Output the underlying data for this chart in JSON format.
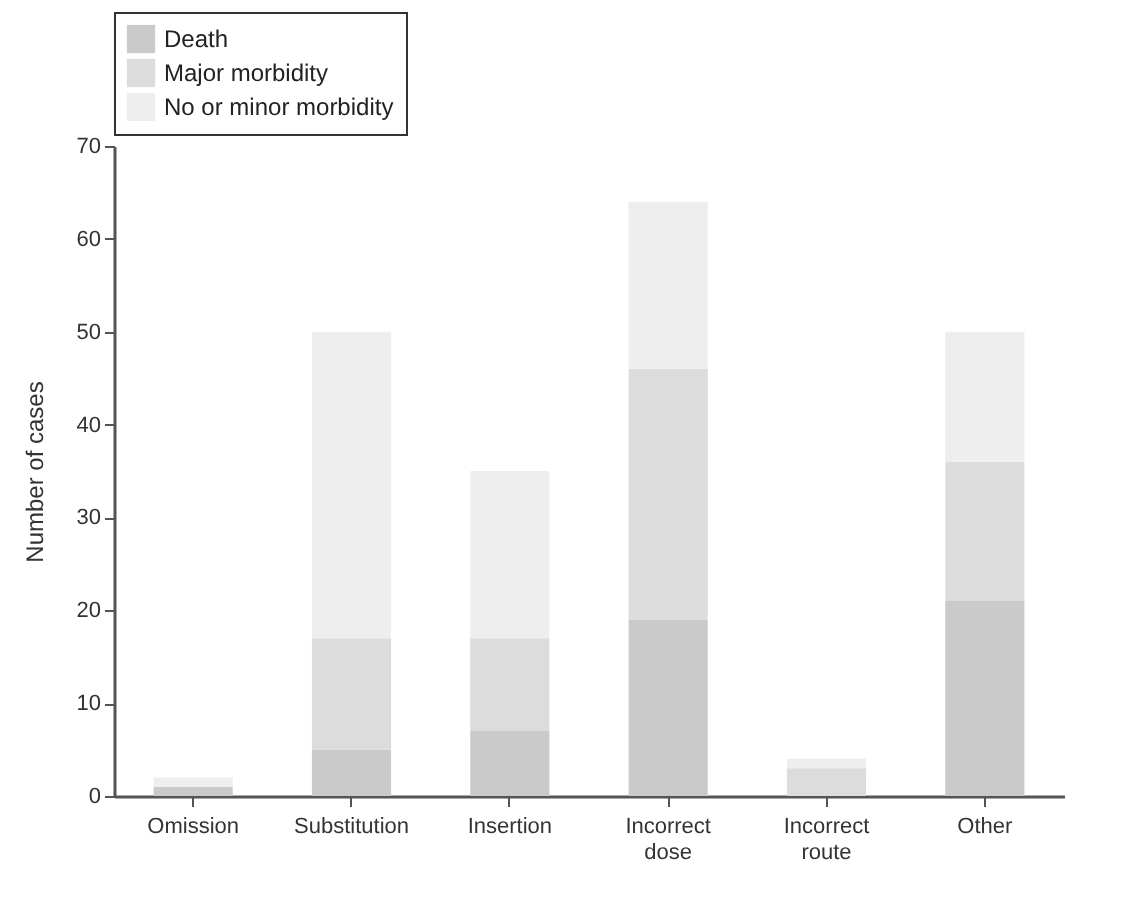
{
  "chart_data": {
    "type": "bar",
    "stacked": true,
    "ylabel": "Number of cases",
    "categories": [
      "Omission",
      "Substitution",
      "Insertion",
      "Incorrect dose",
      "Incorrect route",
      "Other"
    ],
    "series": [
      {
        "name": "Death",
        "color": "#cacaca",
        "values": [
          1,
          5,
          7,
          19,
          0,
          21
        ]
      },
      {
        "name": "Major morbidity",
        "color": "#dcdcdc",
        "values": [
          0,
          12,
          10,
          27,
          3,
          15
        ]
      },
      {
        "name": "No or minor morbidity",
        "color": "#eeeeee",
        "values": [
          1,
          33,
          18,
          18,
          1,
          14
        ]
      }
    ],
    "ylim": [
      0,
      70
    ],
    "yticks": [
      0,
      10,
      20,
      30,
      40,
      50,
      60,
      70
    ],
    "legend": "top",
    "grid": false
  }
}
